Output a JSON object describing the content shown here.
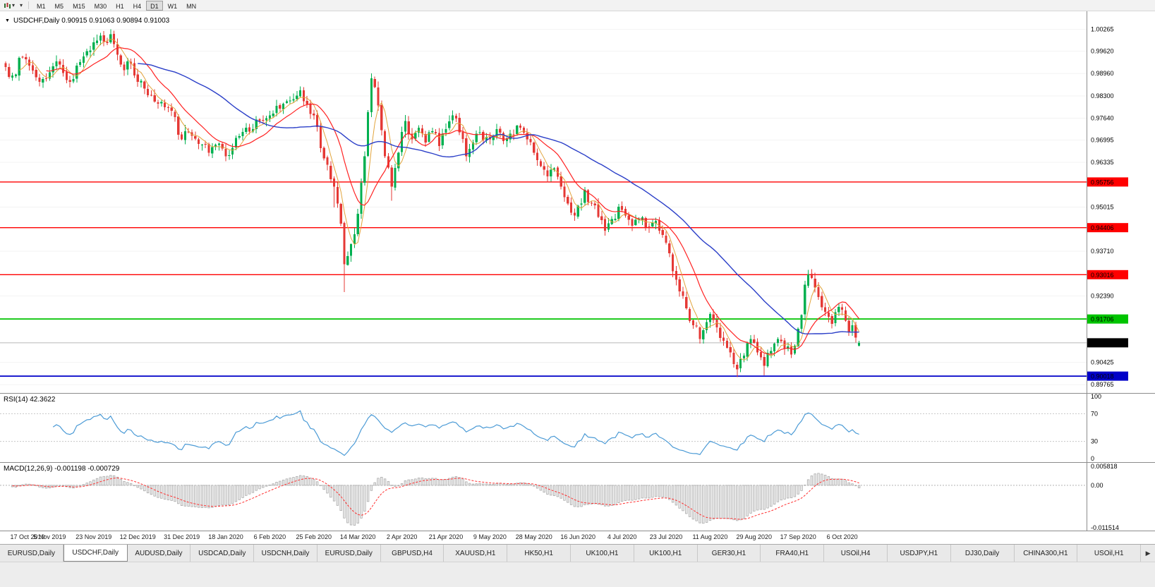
{
  "toolbar": {
    "timeframes": [
      "M1",
      "M5",
      "M15",
      "M30",
      "H1",
      "H4",
      "D1",
      "W1",
      "MN"
    ],
    "active_timeframe": "D1",
    "caret": "▾"
  },
  "chart": {
    "marker": "▼",
    "title": "USDCHF,Daily  0.90915 0.91063 0.90894 0.91003",
    "symbol": "USDCHF,Daily",
    "open": "0.90915",
    "high": "0.91063",
    "low": "0.90894",
    "close": "0.91003"
  },
  "chart_data": {
    "type": "candlestick",
    "title": "USDCHF Daily",
    "candle_count": 253,
    "current_price": "0.91003",
    "last_candle": {
      "open": 0.90915,
      "high": 0.91063,
      "low": 0.90894,
      "close": 0.91003
    },
    "y_axis": {
      "visible_ticks": [
        "1.00265",
        "0.99620",
        "0.98960",
        "0.98300",
        "0.97640",
        "0.96995",
        "0.96335",
        "0.95015",
        "0.93710",
        "0.92390",
        "0.90425",
        "0.89765"
      ],
      "range_min": 0.8952,
      "range_max": 1.008
    },
    "levels": [
      {
        "price": 0.95756,
        "label": "0.95756",
        "color": "#FF0000",
        "type": "resistance"
      },
      {
        "price": 0.94406,
        "label": "0.94406",
        "color": "#FF0000",
        "type": "resistance"
      },
      {
        "price": 0.93016,
        "label": "0.93016",
        "color": "#FF0000",
        "type": "resistance"
      },
      {
        "price": 0.91706,
        "label": "0.91706",
        "color": "#00C400",
        "type": "support"
      },
      {
        "price": 0.90018,
        "label": "0.90018",
        "color": "#0000C8",
        "type": "support"
      }
    ],
    "x_labels": [
      {
        "i": 0,
        "label": "17 Oct 2019"
      },
      {
        "i": 13,
        "label": "5 Nov 2019"
      },
      {
        "i": 26,
        "label": "23 Nov 2019"
      },
      {
        "i": 39,
        "label": "12 Dec 2019"
      },
      {
        "i": 52,
        "label": "31 Dec 2019"
      },
      {
        "i": 65,
        "label": "18 Jan 2020"
      },
      {
        "i": 78,
        "label": "6 Feb 2020"
      },
      {
        "i": 91,
        "label": "25 Feb 2020"
      },
      {
        "i": 104,
        "label": "14 Mar 2020"
      },
      {
        "i": 117,
        "label": "2 Apr 2020"
      },
      {
        "i": 130,
        "label": "21 Apr 2020"
      },
      {
        "i": 143,
        "label": "9 May 2020"
      },
      {
        "i": 156,
        "label": "28 May 2020"
      },
      {
        "i": 169,
        "label": "16 Jun 2020"
      },
      {
        "i": 182,
        "label": "4 Jul 2020"
      },
      {
        "i": 195,
        "label": "23 Jul 2020"
      },
      {
        "i": 208,
        "label": "11 Aug 2020"
      },
      {
        "i": 221,
        "label": "29 Aug 2020"
      },
      {
        "i": 234,
        "label": "17 Sep 2020"
      },
      {
        "i": 247,
        "label": "6 Oct 2020"
      }
    ],
    "close_anchors": [
      [
        0,
        0.9915
      ],
      [
        2,
        0.989
      ],
      [
        5,
        0.9945
      ],
      [
        8,
        0.9905
      ],
      [
        10,
        0.9872
      ],
      [
        13,
        0.99
      ],
      [
        15,
        0.9932
      ],
      [
        17,
        0.9898
      ],
      [
        19,
        0.9872
      ],
      [
        22,
        0.993
      ],
      [
        24,
        0.9962
      ],
      [
        26,
        0.9988
      ],
      [
        28,
        1.0008
      ],
      [
        30,
        0.9986
      ],
      [
        31,
        1.0012
      ],
      [
        33,
        0.9952
      ],
      [
        35,
        0.9906
      ],
      [
        37,
        0.9926
      ],
      [
        39,
        0.9872
      ],
      [
        41,
        0.9852
      ],
      [
        43,
        0.9832
      ],
      [
        46,
        0.9812
      ],
      [
        49,
        0.9786
      ],
      [
        52,
        0.9702
      ],
      [
        54,
        0.9722
      ],
      [
        57,
        0.9688
      ],
      [
        60,
        0.9662
      ],
      [
        62,
        0.9686
      ],
      [
        65,
        0.9652
      ],
      [
        68,
        0.9706
      ],
      [
        71,
        0.9736
      ],
      [
        75,
        0.9756
      ],
      [
        78,
        0.9772
      ],
      [
        81,
        0.9792
      ],
      [
        84,
        0.9816
      ],
      [
        87,
        0.9846
      ],
      [
        89,
        0.9806
      ],
      [
        91,
        0.9772
      ],
      [
        93,
        0.9676
      ],
      [
        95,
        0.9626
      ],
      [
        97,
        0.9562
      ],
      [
        99,
        0.9452
      ],
      [
        100,
        0.9332
      ],
      [
        102,
        0.9392
      ],
      [
        104,
        0.9482
      ],
      [
        106,
        0.9652
      ],
      [
        107,
        0.9782
      ],
      [
        108,
        0.9882
      ],
      [
        110,
        0.9802
      ],
      [
        112,
        0.9652
      ],
      [
        114,
        0.9562
      ],
      [
        116,
        0.9662
      ],
      [
        118,
        0.9756
      ],
      [
        120,
        0.9702
      ],
      [
        122,
        0.9736
      ],
      [
        124,
        0.9692
      ],
      [
        126,
        0.9726
      ],
      [
        128,
        0.9682
      ],
      [
        130,
        0.9732
      ],
      [
        132,
        0.9772
      ],
      [
        134,
        0.9722
      ],
      [
        136,
        0.9652
      ],
      [
        138,
        0.9692
      ],
      [
        140,
        0.9722
      ],
      [
        143,
        0.9702
      ],
      [
        145,
        0.9732
      ],
      [
        147,
        0.9696
      ],
      [
        150,
        0.9716
      ],
      [
        152,
        0.9736
      ],
      [
        154,
        0.9702
      ],
      [
        156,
        0.9662
      ],
      [
        158,
        0.9622
      ],
      [
        160,
        0.9592
      ],
      [
        162,
        0.9616
      ],
      [
        164,
        0.9562
      ],
      [
        166,
        0.9512
      ],
      [
        168,
        0.9476
      ],
      [
        169,
        0.9506
      ],
      [
        171,
        0.9552
      ],
      [
        173,
        0.9512
      ],
      [
        175,
        0.9472
      ],
      [
        177,
        0.9432
      ],
      [
        179,
        0.9466
      ],
      [
        181,
        0.9502
      ],
      [
        183,
        0.9476
      ],
      [
        185,
        0.9446
      ],
      [
        187,
        0.9466
      ],
      [
        189,
        0.9442
      ],
      [
        191,
        0.9456
      ],
      [
        193,
        0.9432
      ],
      [
        195,
        0.9396
      ],
      [
        197,
        0.9312
      ],
      [
        199,
        0.9252
      ],
      [
        201,
        0.9202
      ],
      [
        203,
        0.9152
      ],
      [
        205,
        0.9112
      ],
      [
        207,
        0.9162
      ],
      [
        208,
        0.9186
      ],
      [
        210,
        0.9146
      ],
      [
        212,
        0.9106
      ],
      [
        214,
        0.9072
      ],
      [
        216,
        0.9022
      ],
      [
        218,
        0.9062
      ],
      [
        220,
        0.9112
      ],
      [
        222,
        0.9072
      ],
      [
        224,
        0.9032
      ],
      [
        226,
        0.9076
      ],
      [
        228,
        0.9112
      ],
      [
        230,
        0.9082
      ],
      [
        232,
        0.9066
      ],
      [
        233,
        0.9092
      ],
      [
        234,
        0.9142
      ],
      [
        235,
        0.9182
      ],
      [
        236,
        0.9272
      ],
      [
        237,
        0.9302
      ],
      [
        238,
        0.9292
      ],
      [
        240,
        0.9236
      ],
      [
        242,
        0.9192
      ],
      [
        244,
        0.9156
      ],
      [
        246,
        0.9206
      ],
      [
        248,
        0.9166
      ],
      [
        249,
        0.9132
      ],
      [
        250,
        0.9152
      ],
      [
        251,
        0.9116
      ],
      [
        252,
        0.91003
      ]
    ],
    "wick_overrides": [
      {
        "i": 31,
        "high": 1.00265
      },
      {
        "i": 97,
        "low": 0.95
      },
      {
        "i": 100,
        "low": 0.925
      },
      {
        "i": 108,
        "high": 0.9896
      },
      {
        "i": 114,
        "low": 0.952
      },
      {
        "i": 216,
        "low": 0.8999
      },
      {
        "i": 224,
        "low": 0.9004
      },
      {
        "i": 237,
        "high": 0.9316
      }
    ],
    "moving_averages": [
      {
        "period": 5,
        "color": "#E2A43C",
        "width": 1
      },
      {
        "period": 13,
        "color": "#FF2222",
        "width": 1.2
      },
      {
        "period": 40,
        "color": "#2B3FC8",
        "width": 1.4
      }
    ],
    "indicators": [
      {
        "name": "RSI",
        "label": "RSI(14) 42.3622",
        "period": 14,
        "value": 42.3622,
        "line_color": "#4C9BD6",
        "scale_ticks": [
          "100",
          "70",
          "30",
          "0"
        ],
        "guides": [
          70,
          30
        ]
      },
      {
        "name": "MACD",
        "label": "MACD(12,26,9) -0.001198 -0.000729",
        "macd_value": -0.001198,
        "signal_value": -0.000729,
        "scale_ticks": [
          "0.005818",
          "0.00",
          "-0.011514"
        ],
        "range_max": 0.005818,
        "range_min": -0.011514,
        "histogram_color": "#ABABAB",
        "signal_color": "#FF3030"
      }
    ],
    "colors": {
      "bull": "#00B050",
      "bear": "#E53935",
      "grid": "#F3F3F3",
      "current_line": "#B8B8B8",
      "current_badge": "#000000",
      "separator": "#8C8C8C"
    }
  },
  "tabs": {
    "items": [
      "EURUSD,Daily",
      "USDCHF,Daily",
      "AUDUSD,Daily",
      "USDCAD,Daily",
      "USDCNH,Daily",
      "EURUSD,Daily",
      "GBPUSD,H4",
      "XAUUSD,H1",
      "HK50,H1",
      "UK100,H1",
      "UK100,H1",
      "GER30,H1",
      "FRA40,H1",
      "USOil,H4",
      "USDJPY,H1",
      "DJ30,Daily",
      "CHINA300,H1",
      "USOil,H1"
    ],
    "active_index": 1,
    "scroll_icon": "▶"
  }
}
